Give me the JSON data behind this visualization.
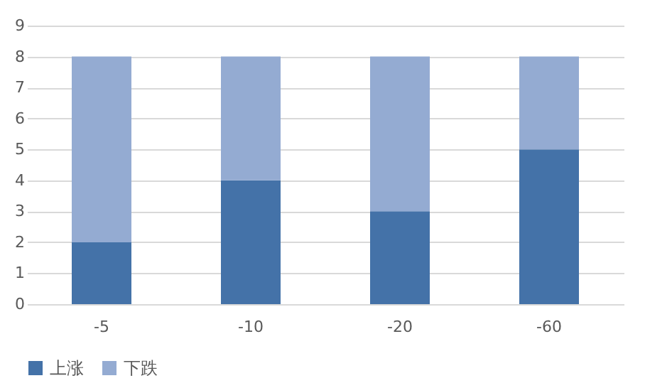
{
  "chart_data": {
    "type": "bar",
    "stacked": true,
    "categories": [
      "-5",
      "-10",
      "-20",
      "-60"
    ],
    "series": [
      {
        "name": "上涨",
        "color": "#4472a8",
        "values": [
          2,
          4,
          3,
          5
        ]
      },
      {
        "name": "下跌",
        "color": "#94abd2",
        "values": [
          6,
          4,
          5,
          3
        ]
      }
    ],
    "ylim": [
      0,
      9
    ],
    "yticks": [
      0,
      1,
      2,
      3,
      4,
      5,
      6,
      7,
      8,
      9
    ],
    "grid": "y",
    "legend": "bottom"
  }
}
